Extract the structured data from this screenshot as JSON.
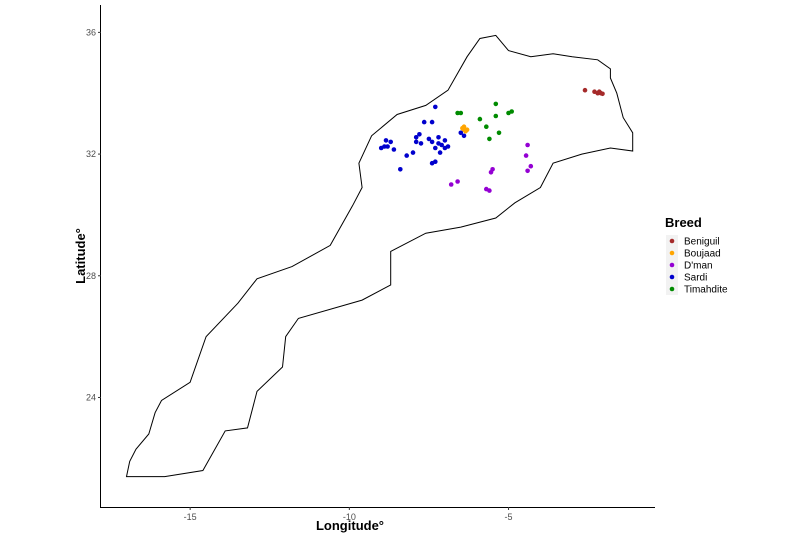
{
  "chart_data": {
    "type": "scatter",
    "xlabel": "Longitude°",
    "ylabel": "Latitude°",
    "xlim": [
      -17.8,
      -0.4
    ],
    "ylim": [
      20.4,
      36.9
    ],
    "x_ticks": [
      -15,
      -10,
      -5
    ],
    "y_ticks": [
      24,
      28,
      32,
      36
    ],
    "x_tick_labels": [
      "-15",
      "-10",
      "-5"
    ],
    "y_tick_labels": [
      "24",
      "28",
      "32",
      "36"
    ],
    "grid": false,
    "legend_title": "Breed",
    "legend_position": "right",
    "outline": [
      [
        -17.0,
        21.4
      ],
      [
        -16.9,
        21.9
      ],
      [
        -16.7,
        22.3
      ],
      [
        -16.3,
        22.8
      ],
      [
        -16.1,
        23.5
      ],
      [
        -15.9,
        23.9
      ],
      [
        -15.0,
        24.5
      ],
      [
        -14.5,
        26.0
      ],
      [
        -13.5,
        27.1
      ],
      [
        -12.9,
        27.9
      ],
      [
        -11.8,
        28.3
      ],
      [
        -10.6,
        29.0
      ],
      [
        -9.9,
        30.3
      ],
      [
        -9.6,
        30.9
      ],
      [
        -9.7,
        31.7
      ],
      [
        -9.3,
        32.6
      ],
      [
        -8.5,
        33.3
      ],
      [
        -7.6,
        33.6
      ],
      [
        -6.9,
        34.1
      ],
      [
        -6.3,
        35.2
      ],
      [
        -5.9,
        35.8
      ],
      [
        -5.4,
        35.9
      ],
      [
        -5.0,
        35.4
      ],
      [
        -4.3,
        35.2
      ],
      [
        -3.6,
        35.3
      ],
      [
        -3.0,
        35.2
      ],
      [
        -2.2,
        35.1
      ],
      [
        -1.8,
        34.8
      ],
      [
        -1.8,
        34.5
      ],
      [
        -1.6,
        34.0
      ],
      [
        -1.4,
        33.2
      ],
      [
        -1.1,
        32.7
      ],
      [
        -1.1,
        32.1
      ],
      [
        -1.8,
        32.2
      ],
      [
        -2.7,
        32.0
      ],
      [
        -3.6,
        31.7
      ],
      [
        -4.0,
        30.9
      ],
      [
        -4.8,
        30.4
      ],
      [
        -5.4,
        29.9
      ],
      [
        -6.5,
        29.6
      ],
      [
        -7.6,
        29.4
      ],
      [
        -8.7,
        28.8
      ],
      [
        -8.7,
        27.7
      ],
      [
        -9.6,
        27.2
      ],
      [
        -11.6,
        26.6
      ],
      [
        -12.0,
        26.0
      ],
      [
        -12.1,
        25.0
      ],
      [
        -12.9,
        24.2
      ],
      [
        -13.2,
        23.0
      ],
      [
        -13.9,
        22.9
      ],
      [
        -14.6,
        21.6
      ],
      [
        -15.8,
        21.4
      ],
      [
        -17.0,
        21.4
      ]
    ],
    "series": [
      {
        "name": "Beniguil",
        "color": "#a52a2a",
        "points": [
          [
            -2.6,
            34.1
          ],
          [
            -2.3,
            34.05
          ],
          [
            -2.2,
            34.0
          ],
          [
            -2.15,
            34.05
          ],
          [
            -2.1,
            34.0
          ],
          [
            -2.05,
            33.98
          ]
        ]
      },
      {
        "name": "Boujaad",
        "color": "#ffa500",
        "points": [
          [
            -6.4,
            32.9
          ],
          [
            -6.4,
            32.8
          ],
          [
            -6.3,
            32.8
          ],
          [
            -6.35,
            32.75
          ],
          [
            -6.45,
            32.85
          ]
        ]
      },
      {
        "name": "D'man",
        "color": "#9400d3",
        "points": [
          [
            -4.4,
            32.3
          ],
          [
            -4.45,
            31.95
          ],
          [
            -4.3,
            31.6
          ],
          [
            -4.4,
            31.45
          ],
          [
            -5.5,
            31.5
          ],
          [
            -5.55,
            31.4
          ],
          [
            -6.6,
            31.1
          ],
          [
            -6.8,
            31.0
          ],
          [
            -5.7,
            30.85
          ],
          [
            -5.6,
            30.8
          ]
        ]
      },
      {
        "name": "Sardi",
        "color": "#0000cd",
        "points": [
          [
            -7.3,
            33.55
          ],
          [
            -7.65,
            33.05
          ],
          [
            -7.4,
            33.05
          ],
          [
            -7.8,
            32.65
          ],
          [
            -7.9,
            32.55
          ],
          [
            -7.9,
            32.4
          ],
          [
            -7.75,
            32.35
          ],
          [
            -7.5,
            32.5
          ],
          [
            -7.4,
            32.4
          ],
          [
            -7.2,
            32.55
          ],
          [
            -7.2,
            32.35
          ],
          [
            -7.1,
            32.3
          ],
          [
            -7.3,
            32.2
          ],
          [
            -7.0,
            32.45
          ],
          [
            -7.0,
            32.2
          ],
          [
            -7.15,
            32.05
          ],
          [
            -6.9,
            32.25
          ],
          [
            -7.4,
            31.7
          ],
          [
            -7.3,
            31.75
          ],
          [
            -8.0,
            32.05
          ],
          [
            -8.2,
            31.95
          ],
          [
            -8.4,
            31.5
          ],
          [
            -8.7,
            32.4
          ],
          [
            -8.85,
            32.45
          ],
          [
            -8.9,
            32.25
          ],
          [
            -9.0,
            32.2
          ],
          [
            -8.6,
            32.15
          ],
          [
            -6.5,
            32.7
          ],
          [
            -6.4,
            32.6
          ],
          [
            -8.8,
            32.25
          ]
        ]
      },
      {
        "name": "Timahdite",
        "color": "#008b00",
        "points": [
          [
            -6.6,
            33.35
          ],
          [
            -6.5,
            33.35
          ],
          [
            -5.4,
            33.65
          ],
          [
            -5.0,
            33.35
          ],
          [
            -4.9,
            33.4
          ],
          [
            -5.4,
            33.25
          ],
          [
            -5.9,
            33.15
          ],
          [
            -5.7,
            32.9
          ],
          [
            -5.3,
            32.7
          ],
          [
            -5.6,
            32.5
          ]
        ]
      }
    ]
  }
}
